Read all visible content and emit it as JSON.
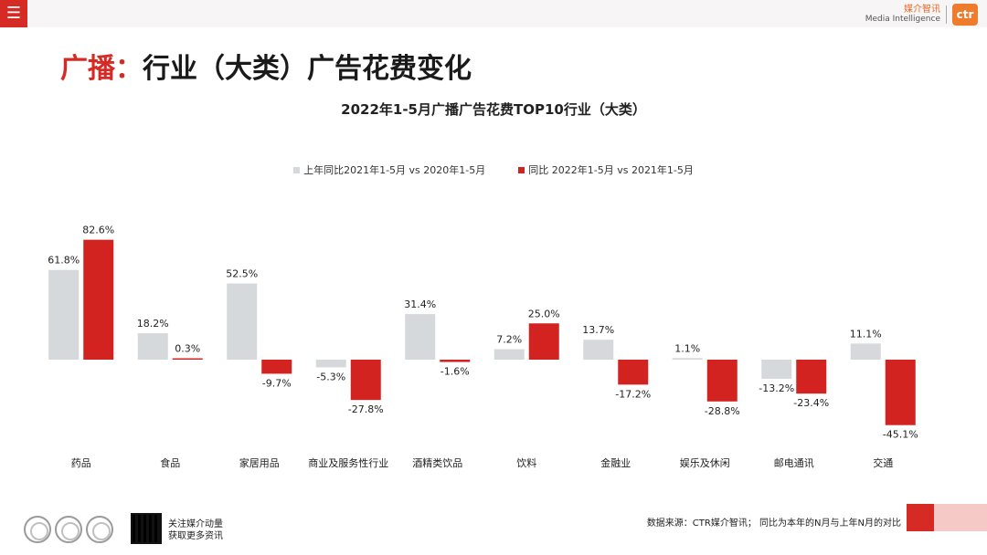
{
  "header": {
    "menu_icon": "hamburger-icon",
    "logo_cn": "媒介智讯",
    "logo_en": "Media Intelligence",
    "logo_mark": "ctr"
  },
  "title": {
    "highlight": "广播：",
    "rest": "行业（大类）广告花费变化"
  },
  "chart_data": {
    "type": "bar",
    "title": "2022年1-5月广播广告花费TOP10行业（大类）",
    "categories": [
      "药品",
      "食品",
      "家居用品",
      "商业及服务性行业",
      "酒精类饮品",
      "饮料",
      "金融业",
      "娱乐及休闲",
      "邮电通讯",
      "交通"
    ],
    "series": [
      {
        "name": "上年同比2021年1-5月  vs  2020年1-5月",
        "color": "#d5d9dc",
        "values": [
          61.8,
          18.2,
          52.5,
          -5.3,
          31.4,
          7.2,
          13.7,
          1.1,
          -13.2,
          11.1
        ],
        "labels": [
          "61.8%",
          "18.2%",
          "52.5%",
          "-5.3%",
          "31.4%",
          "7.2%",
          "13.7%",
          "1.1%",
          "-13.2%",
          "11.1%"
        ]
      },
      {
        "name": "同比 2022年1-5月  vs  2021年1-5月",
        "color": "#d22320",
        "values": [
          82.6,
          0.3,
          -9.7,
          -27.8,
          -1.6,
          25.0,
          -17.2,
          -28.8,
          -23.4,
          -45.1
        ],
        "labels": [
          "82.6%",
          "0.3%",
          "-9.7%",
          "-27.8%",
          "-1.6%",
          "25.0%",
          "-17.2%",
          "-28.8%",
          "-23.4%",
          "-45.1%"
        ]
      }
    ],
    "ylim": [
      -50,
      90
    ],
    "grid": false,
    "legend_position": "top"
  },
  "footer": {
    "qr_text_1": "关注媒介动量",
    "qr_text_2": "获取更多资讯",
    "source": "数据来源：CTR媒介智讯；  同比为本年的N月与上年N月的对比"
  }
}
